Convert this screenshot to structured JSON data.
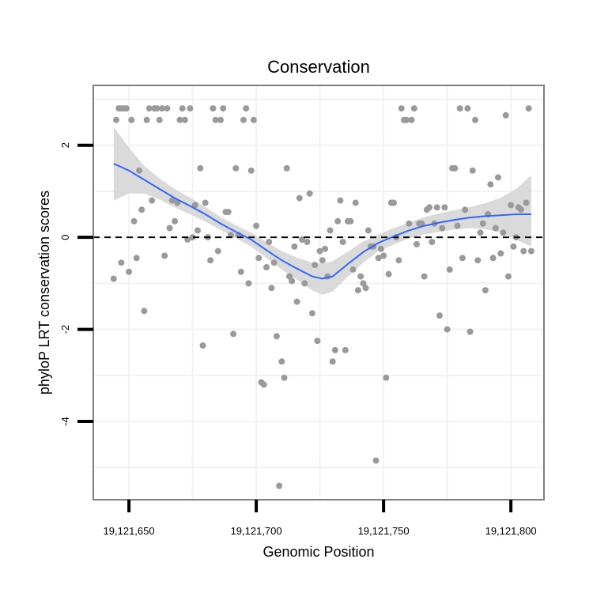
{
  "chart_data": {
    "type": "scatter",
    "title": "Conservation",
    "xlabel": "Genomic Position",
    "ylabel": "phyloP LRT conservation scores",
    "xlim": [
      19121636,
      19121813
    ],
    "ylim": [
      -5.7,
      3.3
    ],
    "x_ticks": [
      19121650,
      19121700,
      19121750,
      19121800
    ],
    "x_tick_labels": [
      "19,121,650",
      "19,121,700",
      "19,121,750",
      "19,121,800"
    ],
    "y_ticks": [
      -4,
      -2,
      0,
      2
    ],
    "y_tick_labels": [
      "-4",
      "-2",
      "0",
      "2"
    ],
    "reference_line": {
      "y": 0,
      "style": "dashed"
    },
    "colors": {
      "points": "#9a9a9a",
      "smooth": "#3366ff",
      "ribbon": "#d6d6d6",
      "frame": "#7f7f7f",
      "grid": "#f2f2f2"
    },
    "points": [
      [
        19121644,
        -0.9
      ],
      [
        19121645,
        2.55
      ],
      [
        19121646,
        2.8
      ],
      [
        19121647,
        2.8
      ],
      [
        19121647,
        -0.55
      ],
      [
        19121648,
        2.8
      ],
      [
        19121649,
        2.8
      ],
      [
        19121650,
        -0.75
      ],
      [
        19121651,
        2.55
      ],
      [
        19121652,
        0.35
      ],
      [
        19121653,
        -0.45
      ],
      [
        19121654,
        1.45
      ],
      [
        19121655,
        0.6
      ],
      [
        19121656,
        -1.6
      ],
      [
        19121657,
        2.55
      ],
      [
        19121658,
        2.8
      ],
      [
        19121659,
        0.8
      ],
      [
        19121660,
        2.8
      ],
      [
        19121661,
        2.8
      ],
      [
        19121662,
        2.55
      ],
      [
        19121663,
        2.8
      ],
      [
        19121664,
        -0.4
      ],
      [
        19121665,
        2.8
      ],
      [
        19121666,
        0.2
      ],
      [
        19121667,
        0.8
      ],
      [
        19121668,
        0.35
      ],
      [
        19121669,
        0.75
      ],
      [
        19121670,
        2.55
      ],
      [
        19121671,
        2.8
      ],
      [
        19121672,
        2.55
      ],
      [
        19121673,
        -0.05
      ],
      [
        19121674,
        2.8
      ],
      [
        19121675,
        0.0
      ],
      [
        19121676,
        0.7
      ],
      [
        19121677,
        0.15
      ],
      [
        19121678,
        1.5
      ],
      [
        19121679,
        -2.35
      ],
      [
        19121680,
        0.75
      ],
      [
        19121681,
        0.0
      ],
      [
        19121682,
        -0.5
      ],
      [
        19121683,
        2.8
      ],
      [
        19121684,
        2.55
      ],
      [
        19121685,
        -0.3
      ],
      [
        19121686,
        2.55
      ],
      [
        19121687,
        2.8
      ],
      [
        19121688,
        0.55
      ],
      [
        19121689,
        0.55
      ],
      [
        19121690,
        0.05
      ],
      [
        19121691,
        -2.1
      ],
      [
        19121692,
        1.5
      ],
      [
        19121693,
        0.05
      ],
      [
        19121694,
        -0.75
      ],
      [
        19121695,
        2.55
      ],
      [
        19121696,
        2.8
      ],
      [
        19121697,
        -1.0
      ],
      [
        19121698,
        1.45
      ],
      [
        19121699,
        2.55
      ],
      [
        19121700,
        0.25
      ],
      [
        19121701,
        -0.45
      ],
      [
        19121702,
        -3.15
      ],
      [
        19121703,
        -3.2
      ],
      [
        19121704,
        -0.65
      ],
      [
        19121705,
        -0.1
      ],
      [
        19121706,
        -1.1
      ],
      [
        19121707,
        -0.55
      ],
      [
        19121708,
        -2.15
      ],
      [
        19121709,
        -5.4
      ],
      [
        19121710,
        -2.7
      ],
      [
        19121711,
        -3.05
      ],
      [
        19121712,
        1.5
      ],
      [
        19121713,
        -0.85
      ],
      [
        19121714,
        -0.95
      ],
      [
        19121715,
        -0.2
      ],
      [
        19121716,
        -1.4
      ],
      [
        19121717,
        0.85
      ],
      [
        19121718,
        -0.05
      ],
      [
        19121719,
        -1.0
      ],
      [
        19121720,
        -0.1
      ],
      [
        19121721,
        0.95
      ],
      [
        19121722,
        -1.65
      ],
      [
        19121723,
        -0.6
      ],
      [
        19121724,
        -2.25
      ],
      [
        19121725,
        -0.3
      ],
      [
        19121726,
        -0.5
      ],
      [
        19121727,
        -0.25
      ],
      [
        19121728,
        -0.85
      ],
      [
        19121729,
        0.15
      ],
      [
        19121730,
        -2.7
      ],
      [
        19121731,
        -2.45
      ],
      [
        19121732,
        0.35
      ],
      [
        19121733,
        0.8
      ],
      [
        19121734,
        -0.1
      ],
      [
        19121735,
        -2.45
      ],
      [
        19121736,
        0.35
      ],
      [
        19121737,
        0.35
      ],
      [
        19121738,
        -0.7
      ],
      [
        19121739,
        0.75
      ],
      [
        19121740,
        -1.15
      ],
      [
        19121741,
        -0.85
      ],
      [
        19121742,
        -1.0
      ],
      [
        19121743,
        -1.1
      ],
      [
        19121744,
        0.15
      ],
      [
        19121745,
        -0.2
      ],
      [
        19121746,
        -0.2
      ],
      [
        19121747,
        -4.85
      ],
      [
        19121748,
        -0.45
      ],
      [
        19121749,
        -0.25
      ],
      [
        19121750,
        -0.4
      ],
      [
        19121751,
        -3.05
      ],
      [
        19121752,
        -0.8
      ],
      [
        19121753,
        0.75
      ],
      [
        19121754,
        0.75
      ],
      [
        19121755,
        0.0
      ],
      [
        19121756,
        -0.5
      ],
      [
        19121757,
        2.8
      ],
      [
        19121758,
        2.55
      ],
      [
        19121759,
        2.55
      ],
      [
        19121760,
        0.3
      ],
      [
        19121761,
        2.55
      ],
      [
        19121762,
        2.8
      ],
      [
        19121763,
        -0.15
      ],
      [
        19121764,
        0.3
      ],
      [
        19121765,
        0.3
      ],
      [
        19121766,
        -0.85
      ],
      [
        19121767,
        0.6
      ],
      [
        19121768,
        0.65
      ],
      [
        19121769,
        -0.1
      ],
      [
        19121770,
        0.3
      ],
      [
        19121771,
        0.65
      ],
      [
        19121772,
        -1.7
      ],
      [
        19121773,
        0.2
      ],
      [
        19121774,
        0.65
      ],
      [
        19121775,
        -2.0
      ],
      [
        19121776,
        -0.7
      ],
      [
        19121777,
        1.5
      ],
      [
        19121778,
        1.5
      ],
      [
        19121779,
        0.25
      ],
      [
        19121780,
        2.8
      ],
      [
        19121781,
        -0.45
      ],
      [
        19121782,
        0.6
      ],
      [
        19121783,
        2.8
      ],
      [
        19121784,
        -2.05
      ],
      [
        19121785,
        1.45
      ],
      [
        19121786,
        2.55
      ],
      [
        19121787,
        -0.5
      ],
      [
        19121788,
        0.1
      ],
      [
        19121789,
        0.3
      ],
      [
        19121790,
        -1.15
      ],
      [
        19121791,
        0.5
      ],
      [
        19121792,
        1.15
      ],
      [
        19121793,
        -0.45
      ],
      [
        19121794,
        0.2
      ],
      [
        19121795,
        1.3
      ],
      [
        19121796,
        -0.35
      ],
      [
        19121797,
        0.1
      ],
      [
        19121798,
        2.65
      ],
      [
        19121799,
        -0.85
      ],
      [
        19121800,
        0.7
      ],
      [
        19121801,
        -0.2
      ],
      [
        19121802,
        0.0
      ],
      [
        19121803,
        0.65
      ],
      [
        19121804,
        0.6
      ],
      [
        19121805,
        -0.3
      ],
      [
        19121806,
        0.75
      ],
      [
        19121807,
        2.8
      ],
      [
        19121808,
        -0.3
      ]
    ],
    "smooth": {
      "x": [
        19121644,
        19121650,
        19121656,
        19121662,
        19121668,
        19121674,
        19121680,
        19121686,
        19121692,
        19121698,
        19121704,
        19121710,
        19121716,
        19121722,
        19121726,
        19121730,
        19121736,
        19121742,
        19121748,
        19121754,
        19121760,
        19121766,
        19121772,
        19121778,
        19121784,
        19121790,
        19121796,
        19121802,
        19121808
      ],
      "y": [
        1.6,
        1.45,
        1.25,
        1.05,
        0.85,
        0.68,
        0.5,
        0.3,
        0.12,
        -0.05,
        -0.28,
        -0.5,
        -0.68,
        -0.85,
        -0.9,
        -0.85,
        -0.58,
        -0.32,
        -0.12,
        0.02,
        0.15,
        0.25,
        0.32,
        0.38,
        0.43,
        0.46,
        0.48,
        0.5,
        0.5
      ],
      "lower": [
        0.8,
        0.95,
        0.95,
        0.82,
        0.65,
        0.5,
        0.34,
        0.16,
        -0.02,
        -0.2,
        -0.45,
        -0.7,
        -0.92,
        -1.15,
        -1.25,
        -1.18,
        -0.85,
        -0.55,
        -0.3,
        -0.16,
        -0.02,
        0.06,
        0.12,
        0.17,
        0.2,
        0.18,
        0.1,
        -0.05,
        -0.2
      ],
      "upper": [
        2.4,
        1.95,
        1.55,
        1.28,
        1.05,
        0.86,
        0.66,
        0.44,
        0.26,
        0.1,
        -0.11,
        -0.3,
        -0.44,
        -0.55,
        -0.57,
        -0.52,
        -0.31,
        -0.09,
        0.06,
        0.2,
        0.32,
        0.44,
        0.52,
        0.59,
        0.66,
        0.74,
        0.86,
        1.05,
        1.35
      ]
    }
  }
}
